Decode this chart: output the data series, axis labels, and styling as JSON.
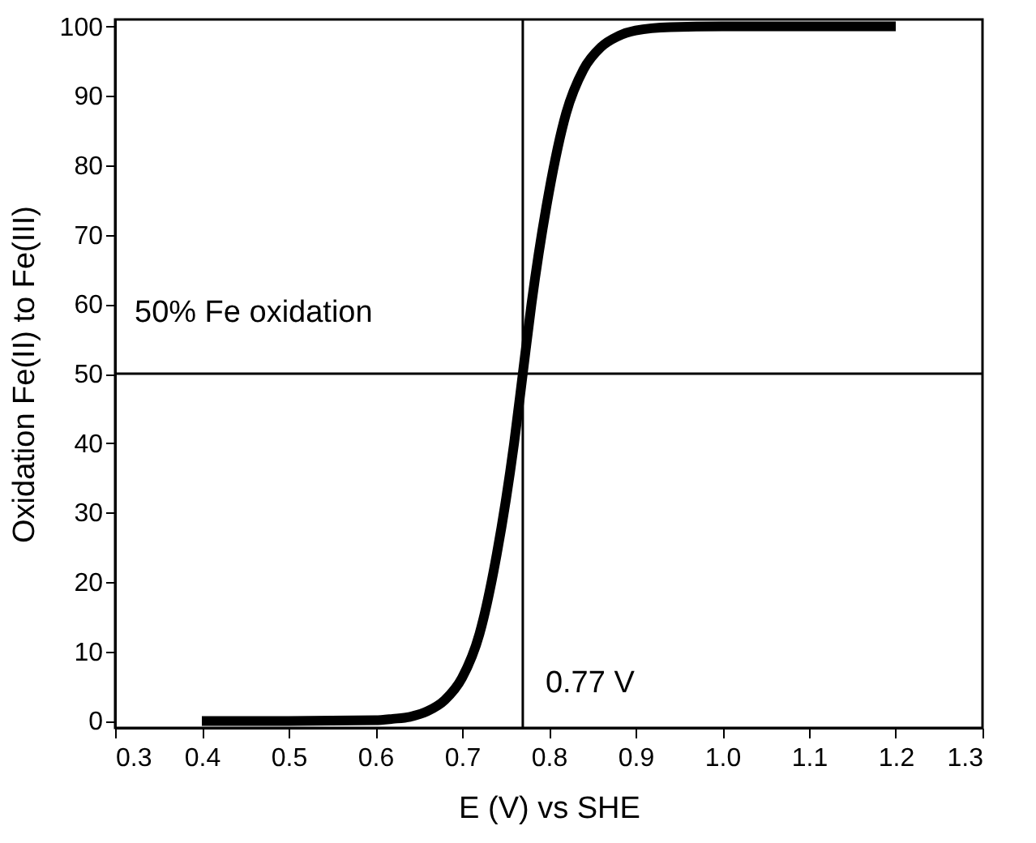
{
  "chart_data": {
    "type": "line",
    "xlabel": "E (V) vs SHE",
    "ylabel": "Oxidation Fe(II) to Fe(III)",
    "x": [
      0.4,
      0.5,
      0.6,
      0.62,
      0.64,
      0.66,
      0.68,
      0.7,
      0.72,
      0.74,
      0.76,
      0.77,
      0.78,
      0.8,
      0.82,
      0.84,
      0.86,
      0.88,
      0.9,
      0.94,
      1.0,
      1.2
    ],
    "series": [
      {
        "color": "#000000",
        "values": [
          0,
          0,
          0.1,
          0.3,
          0.6,
          1.4,
          3,
          6.2,
          12.5,
          24,
          40,
          50,
          60,
          76,
          87.5,
          93.8,
          97,
          98.6,
          99.4,
          99.9,
          100,
          100
        ]
      }
    ],
    "xlim": [
      0.3,
      1.3
    ],
    "xticks": [
      {
        "value": 0.3,
        "label": "0.3"
      },
      {
        "value": 0.4,
        "label": "0.4"
      },
      {
        "value": 0.5,
        "label": "0.5"
      },
      {
        "value": 0.6,
        "label": "0.6"
      },
      {
        "value": 0.7,
        "label": "0.7"
      },
      {
        "value": 0.8,
        "label": "0.8"
      },
      {
        "value": 0.9,
        "label": "0.9"
      },
      {
        "value": 1.0,
        "label": "1.0"
      },
      {
        "value": 1.1,
        "label": "1.1"
      },
      {
        "value": 1.2,
        "label": "1.2"
      },
      {
        "value": 1.3,
        "label": "1.3"
      }
    ],
    "ylim": [
      -1,
      101
    ],
    "yticks": [
      0,
      10,
      20,
      30,
      40,
      50,
      60,
      70,
      80,
      90,
      100
    ],
    "ref_lines": [
      {
        "axis": "y",
        "value": 50,
        "label": "50% Fe oxidation",
        "color": "#000000"
      },
      {
        "axis": "x",
        "value": 0.77,
        "label": "0.77 V",
        "color": "#000000"
      }
    ],
    "grid": false,
    "marker": "none",
    "line_style": "solid"
  }
}
